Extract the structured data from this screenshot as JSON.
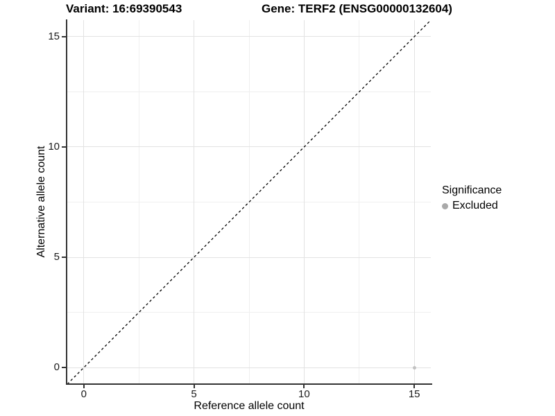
{
  "header": {
    "variant_title": "Variant: 16:69390543",
    "gene_title": "Gene: TERF2 (ENSG00000132604)"
  },
  "chart_data": {
    "type": "scatter",
    "title_left": "Variant: 16:69390543",
    "title_right": "Gene: TERF2 (ENSG00000132604)",
    "xlabel": "Reference allele count",
    "ylabel": "Alternative allele count",
    "xlim": [
      -0.75,
      15.75
    ],
    "ylim": [
      -0.75,
      15.75
    ],
    "x_major_ticks": [
      0,
      5,
      10,
      15
    ],
    "y_major_ticks": [
      0,
      5,
      10,
      15
    ],
    "x_minor_ticks": [
      2.5,
      7.5,
      12.5
    ],
    "y_minor_ticks": [
      2.5,
      7.5,
      12.5
    ],
    "grid": "major+minor",
    "identity_line": {
      "slope": 1,
      "intercept": 0,
      "style": "dashed",
      "color": "#000000"
    },
    "series": [
      {
        "name": "Excluded",
        "color": "#c2c2c2",
        "points": [
          [
            15,
            0
          ]
        ]
      }
    ],
    "legend": {
      "title": "Significance",
      "position": "right",
      "items": [
        {
          "label": "Excluded",
          "color": "#a9a9a9",
          "marker": "circle"
        }
      ]
    }
  },
  "colors": {
    "excluded_point": "#c2c2c2",
    "legend_marker": "#a9a9a9",
    "identity_line": "#000000"
  }
}
